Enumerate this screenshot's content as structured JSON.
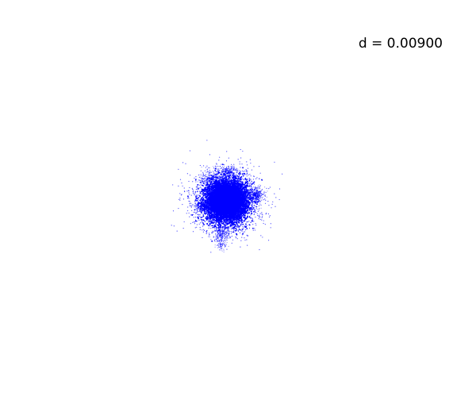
{
  "chart_data": {
    "type": "scatter",
    "title": "",
    "xlabel": "",
    "ylabel": "",
    "axes_visible": false,
    "grid": false,
    "annotation": "d = 0.00900",
    "series": [
      {
        "color": "#0000ff",
        "marker": "dot",
        "point_count_estimate": 15000,
        "center": [
          0.0,
          0.0
        ],
        "x_range_approx": [
          -0.045,
          0.055
        ],
        "y_range_approx": [
          -0.075,
          0.047
        ]
      }
    ]
  }
}
